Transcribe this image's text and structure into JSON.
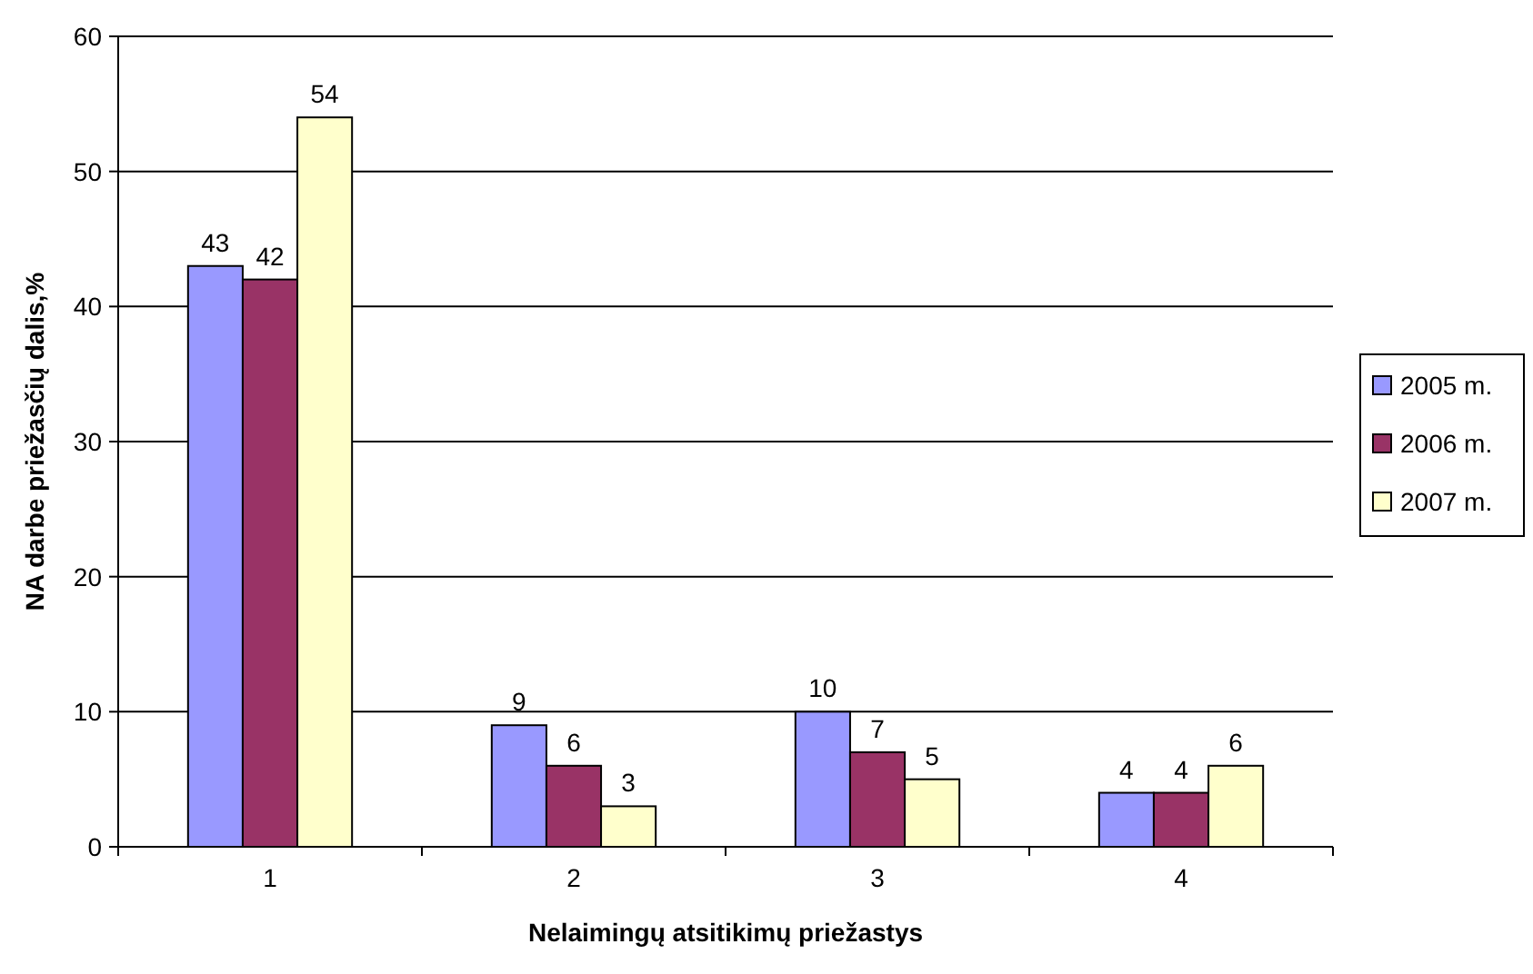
{
  "chart_data": {
    "type": "bar",
    "xlabel": "Nelaimingų atsitikimų priežastys",
    "ylabel": "NA darbe priežasčių dalis,%",
    "categories": [
      "1",
      "2",
      "3",
      "4"
    ],
    "series": [
      {
        "name": "2005 m.",
        "color": "#9999ff",
        "values": [
          43,
          9,
          10,
          4
        ]
      },
      {
        "name": "2006 m.",
        "color": "#993366",
        "values": [
          42,
          6,
          7,
          4
        ]
      },
      {
        "name": "2007 m.",
        "color": "#ffffcc",
        "values": [
          54,
          3,
          5,
          6
        ]
      }
    ],
    "ylim": [
      0,
      60
    ],
    "yticks": [
      0,
      10,
      20,
      30,
      40,
      50,
      60
    ],
    "grid": "y",
    "legend": "right",
    "data_labels": true
  }
}
